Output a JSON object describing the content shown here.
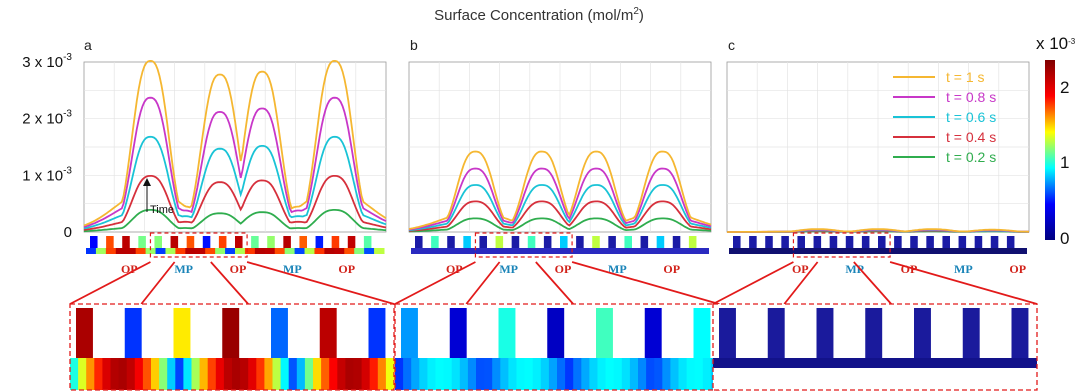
{
  "figure": {
    "title": "Surface Concentration (mol/m",
    "title_sup": "2",
    "title_end": ")",
    "panel_labels": [
      "a",
      "b",
      "c"
    ],
    "colorbar": {
      "exponent_label": "x 10",
      "exponent_sup": "-3",
      "ticks": [
        "2",
        "1",
        "0"
      ],
      "stops": [
        "#00007f",
        "#0000ff",
        "#00ffff",
        "#ffff00",
        "#ff0000",
        "#7f0000"
      ]
    },
    "annotation": "Time",
    "region_labels": [
      "OP",
      "MP",
      "OP",
      "MP",
      "OP"
    ],
    "region_colors": {
      "OP": "#d2221a",
      "MP": "#1a84b8"
    }
  },
  "chart_data": [
    {
      "type": "line",
      "panel": "a",
      "ylim": [
        0,
        0.003
      ],
      "yticks": [
        {
          "value": 0,
          "label": "0",
          "sup": ""
        },
        {
          "value": 0.001,
          "label": "1 x 10",
          "sup": "-3"
        },
        {
          "value": 0.002,
          "label": "2 x 10",
          "sup": "-3"
        },
        {
          "value": 0.003,
          "label": "3 x 10",
          "sup": "-3"
        }
      ],
      "grid": true,
      "peak_centers": [
        0.22,
        0.45,
        0.59,
        0.83
      ],
      "series": [
        {
          "name": "t = 1 s",
          "color": "#f5b731",
          "peaks": [
            0.00302,
            0.00278,
            0.00283,
            0.00302
          ],
          "valleys": [
            0.00045,
            0.0011,
            0.00045
          ]
        },
        {
          "name": "t = 0.8 s",
          "color": "#c837c8",
          "peaks": [
            0.00237,
            0.00212,
            0.00218,
            0.00237
          ],
          "valleys": [
            0.00038,
            0.00088,
            0.00038
          ]
        },
        {
          "name": "t = 0.6 s",
          "color": "#19c3d6",
          "peaks": [
            0.00168,
            0.00147,
            0.00152,
            0.00168
          ],
          "valleys": [
            0.00028,
            0.00062,
            0.00028
          ]
        },
        {
          "name": "t = 0.4 s",
          "color": "#d6303c",
          "peaks": [
            0.00099,
            0.00088,
            0.00091,
            0.00099
          ],
          "valleys": [
            0.00018,
            0.00036,
            0.00018
          ]
        },
        {
          "name": "t = 0.2 s",
          "color": "#2fad4e",
          "peaks": [
            0.00039,
            0.00033,
            0.00035,
            0.00039
          ],
          "valleys": [
            7e-05,
            0.00013,
            7e-05
          ]
        }
      ]
    },
    {
      "type": "line",
      "panel": "b",
      "ylim": [
        0,
        0.003
      ],
      "grid": true,
      "peak_centers": [
        0.22,
        0.44,
        0.62,
        0.84
      ],
      "series": [
        {
          "name": "t = 1 s",
          "color": "#f5b731",
          "peaks": [
            0.00142,
            0.00142,
            0.00142,
            0.00142
          ],
          "valleys": [
            0.0001,
            0.0001,
            0.0001
          ]
        },
        {
          "name": "t = 0.8 s",
          "color": "#c837c8",
          "peaks": [
            0.00112,
            0.00112,
            0.00112,
            0.00112
          ],
          "valleys": [
            8e-05,
            8e-05,
            8e-05
          ]
        },
        {
          "name": "t = 0.6 s",
          "color": "#19c3d6",
          "peaks": [
            0.00083,
            0.00083,
            0.00083,
            0.00083
          ],
          "valleys": [
            6e-05,
            6e-05,
            6e-05
          ]
        },
        {
          "name": "t = 0.4 s",
          "color": "#d6303c",
          "peaks": [
            0.00054,
            0.00054,
            0.00054,
            0.00054
          ],
          "valleys": [
            4e-05,
            4e-05,
            4e-05
          ]
        },
        {
          "name": "t = 0.2 s",
          "color": "#2fad4e",
          "peaks": [
            0.00024,
            0.00024,
            0.00024,
            0.00024
          ],
          "valleys": [
            2e-05,
            2e-05,
            2e-05
          ]
        }
      ]
    },
    {
      "type": "line",
      "panel": "c",
      "ylim": [
        0,
        0.003
      ],
      "grid": true,
      "legend": "top-right",
      "peak_centers": [
        0.3,
        0.5,
        0.68,
        0.88
      ],
      "series": [
        {
          "name": "t = 1 s",
          "color": "#f5b731",
          "peaks": [
            5e-05,
            5e-05,
            5e-05,
            4e-05
          ],
          "valleys": [
            1e-05,
            1e-05,
            1e-05
          ]
        },
        {
          "name": "t = 0.8 s",
          "color": "#c837c8",
          "peaks": [
            4e-05,
            4e-05,
            4e-05,
            3e-05
          ],
          "valleys": [
            1e-05,
            1e-05,
            1e-05
          ]
        },
        {
          "name": "t = 0.6 s",
          "color": "#19c3d6",
          "peaks": [
            3e-05,
            3e-05,
            3e-05,
            2e-05
          ],
          "valleys": [
            1e-05,
            1e-05,
            1e-05
          ]
        },
        {
          "name": "t = 0.4 s",
          "color": "#d6303c",
          "peaks": [
            2e-05,
            2e-05,
            2e-05,
            2e-05
          ],
          "valleys": [
            1e-05,
            1e-05,
            1e-05
          ]
        },
        {
          "name": "t = 0.2 s",
          "color": "#2fad4e",
          "peaks": [
            1e-05,
            1e-05,
            1e-05,
            1e-05
          ],
          "valleys": [
            0,
            0,
            0
          ]
        }
      ]
    }
  ]
}
